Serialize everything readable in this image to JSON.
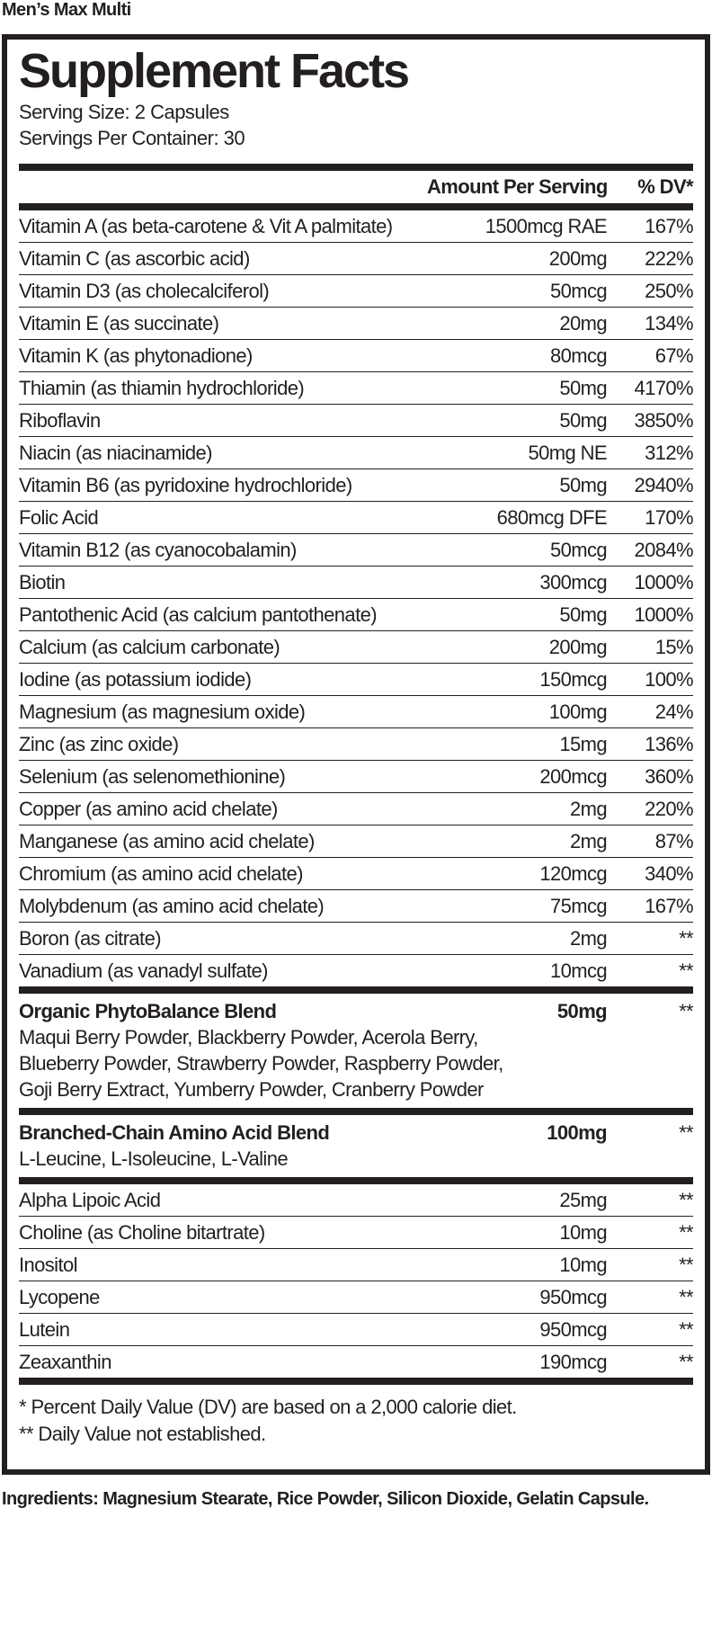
{
  "product_name": "Men’s Max Multi",
  "title": "Supplement Facts",
  "serving_size": "Serving Size: 2 Capsules",
  "servings_per_container": "Servings Per Container: 30",
  "header": {
    "amount": "Amount Per Serving",
    "dv": "% DV*"
  },
  "nutrients": [
    {
      "name": "Vitamin A (as beta-carotene & Vit A palmitate)",
      "amount": "1500mcg RAE",
      "dv": "167%"
    },
    {
      "name": "Vitamin C (as ascorbic acid)",
      "amount": "200mg",
      "dv": "222%"
    },
    {
      "name": "Vitamin D3 (as cholecalciferol)",
      "amount": "50mcg",
      "dv": "250%"
    },
    {
      "name": "Vitamin E (as succinate)",
      "amount": "20mg",
      "dv": "134%"
    },
    {
      "name": "Vitamin K (as phytonadione)",
      "amount": "80mcg",
      "dv": "67%"
    },
    {
      "name": "Thiamin (as thiamin hydrochloride)",
      "amount": "50mg",
      "dv": "4170%"
    },
    {
      "name": "Riboflavin",
      "amount": "50mg",
      "dv": "3850%"
    },
    {
      "name": "Niacin (as niacinamide)",
      "amount": "50mg NE",
      "dv": "312%"
    },
    {
      "name": "Vitamin B6 (as pyridoxine hydrochloride)",
      "amount": "50mg",
      "dv": "2940%"
    },
    {
      "name": "Folic Acid",
      "amount": "680mcg DFE",
      "dv": "170%"
    },
    {
      "name": "Vitamin B12 (as cyanocobalamin)",
      "amount": "50mcg",
      "dv": "2084%"
    },
    {
      "name": "Biotin",
      "amount": "300mcg",
      "dv": "1000%"
    },
    {
      "name": "Pantothenic Acid (as calcium pantothenate)",
      "amount": "50mg",
      "dv": "1000%"
    },
    {
      "name": "Calcium (as calcium carbonate)",
      "amount": "200mg",
      "dv": "15%"
    },
    {
      "name": "Iodine (as potassium iodide)",
      "amount": "150mcg",
      "dv": "100%"
    },
    {
      "name": "Magnesium (as magnesium oxide)",
      "amount": "100mg",
      "dv": "24%"
    },
    {
      "name": "Zinc (as zinc oxide)",
      "amount": "15mg",
      "dv": "136%"
    },
    {
      "name": "Selenium (as selenomethionine)",
      "amount": "200mcg",
      "dv": "360%"
    },
    {
      "name": "Copper (as amino acid chelate)",
      "amount": "2mg",
      "dv": "220%"
    },
    {
      "name": "Manganese (as amino acid chelate)",
      "amount": "2mg",
      "dv": "87%"
    },
    {
      "name": "Chromium (as amino acid chelate)",
      "amount": "120mcg",
      "dv": "340%"
    },
    {
      "name": "Molybdenum (as amino acid chelate)",
      "amount": "75mcg",
      "dv": "167%"
    },
    {
      "name": "Boron (as citrate)",
      "amount": "2mg",
      "dv": "**"
    },
    {
      "name": "Vanadium (as vanadyl sulfate)",
      "amount": "10mcg",
      "dv": "**"
    }
  ],
  "blends": [
    {
      "name": "Organic PhytoBalance Blend",
      "amount": "50mg",
      "dv": "**",
      "lines": [
        "Maqui Berry Powder, Blackberry Powder, Acerola Berry,",
        "Blueberry Powder, Strawberry Powder, Raspberry Powder,",
        "Goji Berry Extract, Yumberry Powder, Cranberry Powder"
      ]
    },
    {
      "name": "Branched-Chain Amino Acid Blend",
      "amount": "100mg",
      "dv": "**",
      "lines": [
        "L-Leucine, L-Isoleucine, L-Valine"
      ]
    }
  ],
  "others": [
    {
      "name": "Alpha Lipoic Acid",
      "amount": "25mg",
      "dv": "**"
    },
    {
      "name": "Choline (as Choline bitartrate)",
      "amount": "10mg",
      "dv": "**"
    },
    {
      "name": "Inositol",
      "amount": "10mg",
      "dv": "**"
    },
    {
      "name": "Lycopene",
      "amount": "950mcg",
      "dv": "**"
    },
    {
      "name": "Lutein",
      "amount": "950mcg",
      "dv": "**"
    },
    {
      "name": "Zeaxanthin",
      "amount": "190mcg",
      "dv": "**"
    }
  ],
  "footnotes": [
    "* Percent Daily Value (DV) are based on a 2,000 calorie diet.",
    "** Daily Value not established."
  ],
  "ingredients": "Ingredients: Magnesium Stearate, Rice Powder, Silicon Dioxide, Gelatin Capsule."
}
